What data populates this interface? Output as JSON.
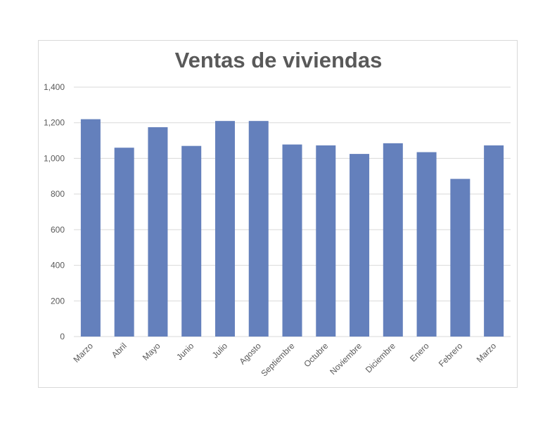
{
  "chart_data": {
    "type": "bar",
    "title": "Ventas de viviendas",
    "xlabel": "",
    "ylabel": "",
    "categories": [
      "Marzo",
      "Abril",
      "Mayo",
      "Junio",
      "Julio",
      "Agosto",
      "Septiembre",
      "Octubre",
      "Noviembre",
      "Diciembre",
      "Enero",
      "Febrero",
      "Marzo"
    ],
    "values": [
      1220,
      1060,
      1175,
      1070,
      1210,
      1210,
      1078,
      1073,
      1025,
      1085,
      1035,
      885,
      1073
    ],
    "ylim": [
      0,
      1400
    ],
    "yticks": [
      "0",
      "200",
      "400",
      "600",
      "800",
      "1,000",
      "1,200",
      "1,400"
    ],
    "grid": true,
    "legend": "none",
    "colors": {
      "bar": "#6480bc",
      "grid": "#d9d9d9",
      "text": "#595959"
    }
  }
}
